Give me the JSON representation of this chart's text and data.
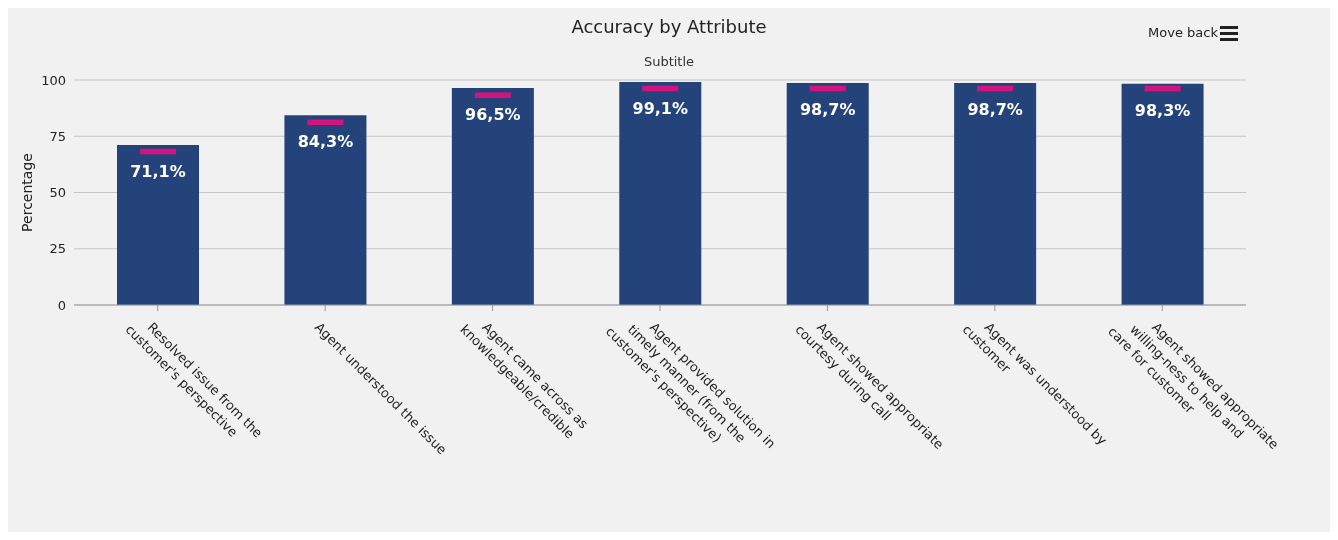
{
  "chart_data": {
    "type": "bar",
    "title": "Accuracy by Attribute",
    "subtitle": "Subtitle",
    "ylabel": "Percentage",
    "categories": [
      "Resolved issue from the customer's perspective",
      "Agent understood the issue",
      "Agent came across as knowledgeable/credible",
      "Agent provided solution in timely manner (from the customer's perspective)",
      "Agent showed appropriate courtesy during call",
      "Agent was understood by customer",
      "Agent showed appropriate willing-ness to help and care for customer"
    ],
    "series": [
      {
        "type": "bar",
        "color": "#24437a",
        "values": [
          71.1,
          84.3,
          96.5,
          99.1,
          98.7,
          98.7,
          98.3
        ],
        "value_labels": [
          "71,1%",
          "84,3%",
          "96,5%",
          "99,1%",
          "98,7%",
          "98,7%",
          "98,3%"
        ]
      },
      {
        "type": "bar",
        "color": "#d4137f",
        "base": [
          67,
          80,
          92,
          95,
          95,
          95,
          95
        ],
        "values": [
          2.5,
          2.5,
          2.5,
          2.5,
          2.5,
          2.5,
          2.5
        ]
      }
    ],
    "ylim": [
      0,
      100
    ],
    "yticks": [
      0,
      25,
      50,
      75,
      100
    ],
    "grid": "y",
    "legend": false,
    "annotations": [
      "Move back"
    ]
  }
}
